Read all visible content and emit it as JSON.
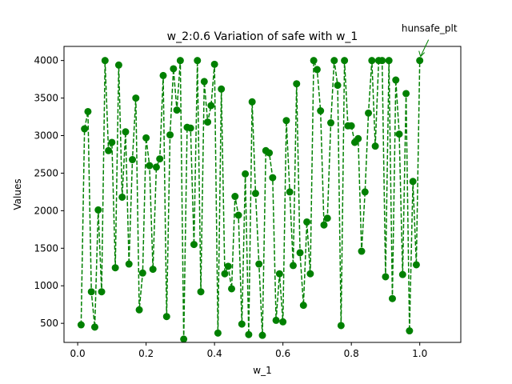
{
  "chart_data": {
    "type": "line",
    "title": "w_2:0.6 Variation of safe with w_1",
    "xlabel": "w_1",
    "ylabel": "Values",
    "xlim": [
      -0.04,
      1.12
    ],
    "ylim": [
      246,
      4188
    ],
    "xticks": [
      0.0,
      0.2,
      0.4,
      0.6,
      0.8,
      1.0
    ],
    "xtick_labels": [
      "0.0",
      "0.2",
      "0.4",
      "0.6",
      "0.8",
      "1.0"
    ],
    "yticks": [
      500,
      1000,
      1500,
      2000,
      2500,
      3000,
      3500,
      4000
    ],
    "ytick_labels": [
      "500",
      "1000",
      "1500",
      "2000",
      "2500",
      "3000",
      "3500",
      "4000"
    ],
    "grid": false,
    "annotation": {
      "text": "hunsafe_plt",
      "x": 1.0,
      "y": 4000
    },
    "series": [
      {
        "color": "#008000",
        "line_style": "dashed",
        "marker": "circle",
        "x": [
          0.01,
          0.02,
          0.03,
          0.04,
          0.05,
          0.06,
          0.07,
          0.08,
          0.09,
          0.1,
          0.11,
          0.12,
          0.13,
          0.14,
          0.15,
          0.16,
          0.17,
          0.18,
          0.19,
          0.2,
          0.21,
          0.22,
          0.23,
          0.24,
          0.25,
          0.26,
          0.27,
          0.28,
          0.29,
          0.3,
          0.31,
          0.32,
          0.33,
          0.34,
          0.35,
          0.36,
          0.37,
          0.38,
          0.39,
          0.4,
          0.41,
          0.42,
          0.43,
          0.44,
          0.45,
          0.46,
          0.47,
          0.48,
          0.49,
          0.5,
          0.51,
          0.52,
          0.53,
          0.54,
          0.55,
          0.56,
          0.57,
          0.58,
          0.59,
          0.6,
          0.61,
          0.62,
          0.63,
          0.64,
          0.65,
          0.66,
          0.67,
          0.68,
          0.69,
          0.7,
          0.71,
          0.72,
          0.73,
          0.74,
          0.75,
          0.76,
          0.77,
          0.78,
          0.79,
          0.8,
          0.81,
          0.82,
          0.83,
          0.84,
          0.85,
          0.86,
          0.87,
          0.88,
          0.89,
          0.9,
          0.91,
          0.92,
          0.93,
          0.94,
          0.95,
          0.96,
          0.97,
          0.98,
          0.99,
          1.0
        ],
        "y": [
          480,
          3090,
          3320,
          920,
          450,
          2010,
          920,
          4000,
          2800,
          2910,
          1240,
          3940,
          2180,
          3050,
          1290,
          2680,
          3500,
          680,
          1170,
          2970,
          2600,
          1220,
          2580,
          2690,
          3800,
          590,
          3010,
          3890,
          3340,
          4000,
          290,
          3110,
          3100,
          1550,
          4000,
          920,
          3720,
          3180,
          3400,
          3950,
          370,
          3620,
          1160,
          1260,
          960,
          2190,
          1940,
          490,
          2490,
          350,
          3450,
          2230,
          1290,
          340,
          2800,
          2770,
          2440,
          540,
          1160,
          520,
          3200,
          2250,
          1270,
          3690,
          1440,
          740,
          1850,
          1160,
          4000,
          3880,
          3330,
          1810,
          1900,
          3170,
          4000,
          3670,
          470,
          4000,
          3130,
          3130,
          2910,
          2960,
          1460,
          2250,
          3300,
          4000,
          2860,
          4000,
          4000,
          1120,
          4000,
          830,
          3740,
          3020,
          1150,
          3560,
          400,
          2390,
          1280,
          4000
        ]
      }
    ]
  }
}
